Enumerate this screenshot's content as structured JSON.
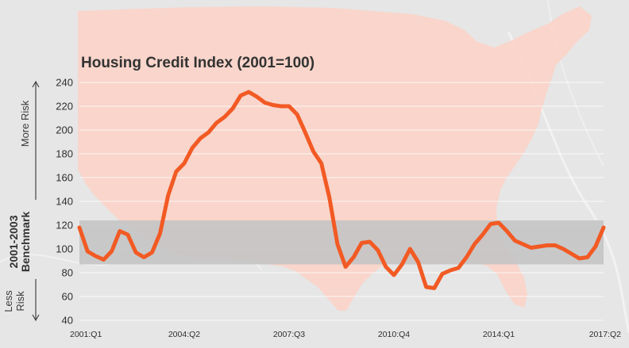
{
  "chart_data": {
    "type": "line",
    "title": "Housing Credit Index (2001=100)",
    "x_tick_labels": [
      "2001:Q1",
      "2004:Q2",
      "2007:Q3",
      "2010:Q4",
      "2014:Q1",
      "2017:Q2"
    ],
    "ylim": [
      40,
      240
    ],
    "y_ticks": [
      40,
      60,
      80,
      100,
      120,
      140,
      160,
      180,
      200,
      220,
      240
    ],
    "benchmark_band": {
      "label": "2001-2003 Benchmark",
      "range": [
        87,
        124
      ]
    },
    "annotations": {
      "more_risk": "More Risk",
      "less_risk": "Less Risk"
    },
    "grid": true,
    "series": [
      {
        "values": [
          118,
          98,
          94,
          91,
          98,
          115,
          112,
          97,
          93,
          97,
          113,
          145,
          165,
          172,
          185,
          193,
          198,
          206,
          211,
          218,
          229,
          232,
          228,
          223,
          221,
          220,
          220,
          213,
          198,
          182,
          172,
          143,
          104,
          85,
          93,
          105,
          106,
          99,
          85,
          78,
          87,
          100,
          89,
          68,
          67,
          79,
          82,
          84,
          93,
          104,
          112,
          121,
          122,
          115,
          107,
          104,
          101,
          102,
          103,
          103,
          100,
          96,
          92,
          93,
          102,
          118
        ]
      }
    ],
    "colors": {
      "line": "#f25a24",
      "band": "#c4c4c4",
      "map": "#fbd3c8",
      "background": "#e6e6e6"
    }
  }
}
